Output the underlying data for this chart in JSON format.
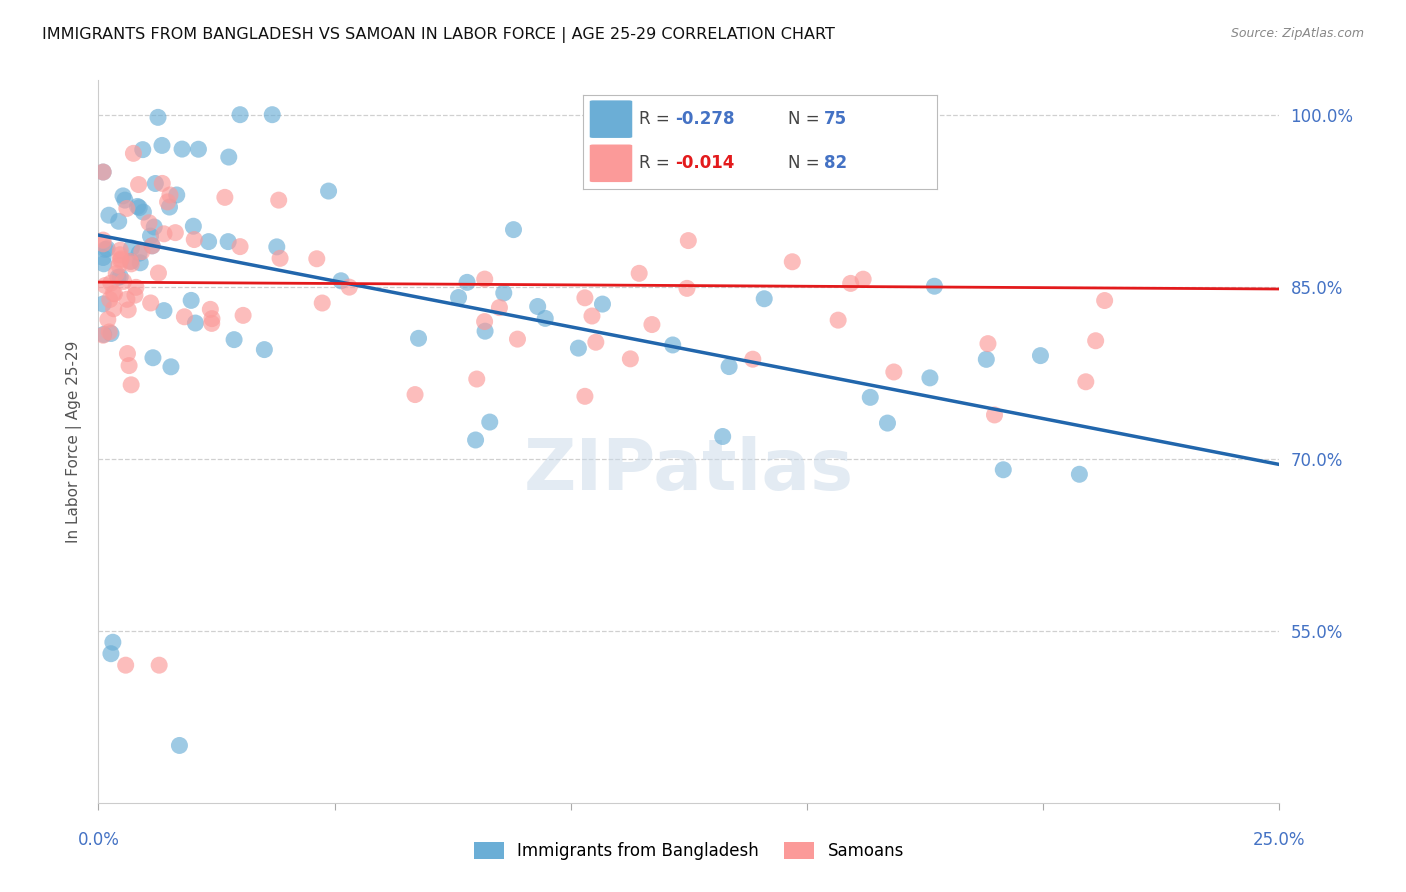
{
  "title": "IMMIGRANTS FROM BANGLADESH VS SAMOAN IN LABOR FORCE | AGE 25-29 CORRELATION CHART",
  "source": "Source: ZipAtlas.com",
  "ylabel": "In Labor Force | Age 25-29",
  "ytick_labels": [
    "100.0%",
    "85.0%",
    "70.0%",
    "55.0%"
  ],
  "ytick_values": [
    1.0,
    0.85,
    0.7,
    0.55
  ],
  "xlim": [
    0.0,
    0.25
  ],
  "ylim": [
    0.4,
    1.03
  ],
  "watermark": "ZIPatlas",
  "legend_blue_r": "-0.278",
  "legend_blue_n": "75",
  "legend_pink_r": "-0.014",
  "legend_pink_n": "82",
  "legend_blue_label": "Immigrants from Bangladesh",
  "legend_pink_label": "Samoans",
  "blue_color": "#6baed6",
  "pink_color": "#fb9a99",
  "line_blue_color": "#2166ac",
  "line_pink_color": "#e31a1c",
  "blue_trend_x": [
    0.0,
    0.25
  ],
  "blue_trend_y": [
    0.895,
    0.695
  ],
  "pink_trend_y": [
    0.854,
    0.848
  ],
  "grid_color": "#d0d0d0",
  "background_color": "#ffffff",
  "watermark_fontsize": 52,
  "watermark_color": "#c8d8e8",
  "watermark_alpha": 0.5
}
